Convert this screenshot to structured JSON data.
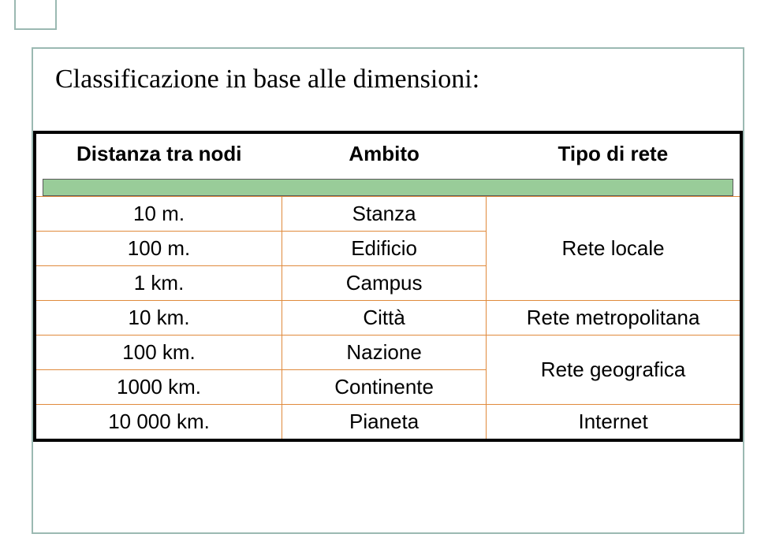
{
  "title": "Classificazione in base alle dimensioni:",
  "table": {
    "headers": [
      "Distanza tra nodi",
      "Ambito",
      "Tipo di rete"
    ],
    "rows": [
      {
        "dist": "10 m.",
        "amb": "Stanza"
      },
      {
        "dist": "100 m.",
        "amb": "Edificio"
      },
      {
        "dist": "1 km.",
        "amb": "Campus"
      },
      {
        "dist": "10 km.",
        "amb": "Città"
      },
      {
        "dist": "100 km.",
        "amb": "Nazione"
      },
      {
        "dist": "1000 km.",
        "amb": "Continente"
      },
      {
        "dist": "10 000 km.",
        "amb": "Pianeta"
      }
    ],
    "types": {
      "locale": "Rete locale",
      "metro": "Rete metropolitana",
      "geo": "Rete geografica",
      "internet": "Internet"
    },
    "colors": {
      "outer_border": "#000000",
      "inner_border": "#e08a3c",
      "gap_fill": "#99cc99",
      "gap_border": "#595959",
      "frame_border": "#9bb9b2",
      "background": "#ffffff",
      "text": "#000000"
    },
    "font": {
      "title_family": "Times New Roman",
      "title_size_pt": 26,
      "body_family": "Arial",
      "body_size_pt": 20
    }
  }
}
